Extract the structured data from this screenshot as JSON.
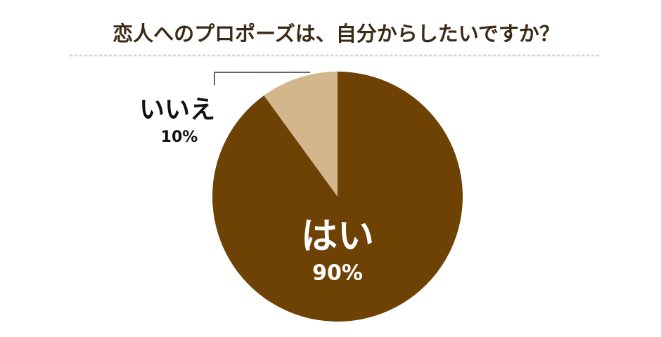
{
  "chart_data": {
    "type": "pie",
    "title": "恋人へのプロポーズは、自分からしたいですか？",
    "categories": [
      "はい",
      "いいえ"
    ],
    "values": [
      90,
      10
    ],
    "value_labels": [
      "90%",
      "10%"
    ],
    "colors": [
      "#6e4104",
      "#d4b68c"
    ]
  }
}
